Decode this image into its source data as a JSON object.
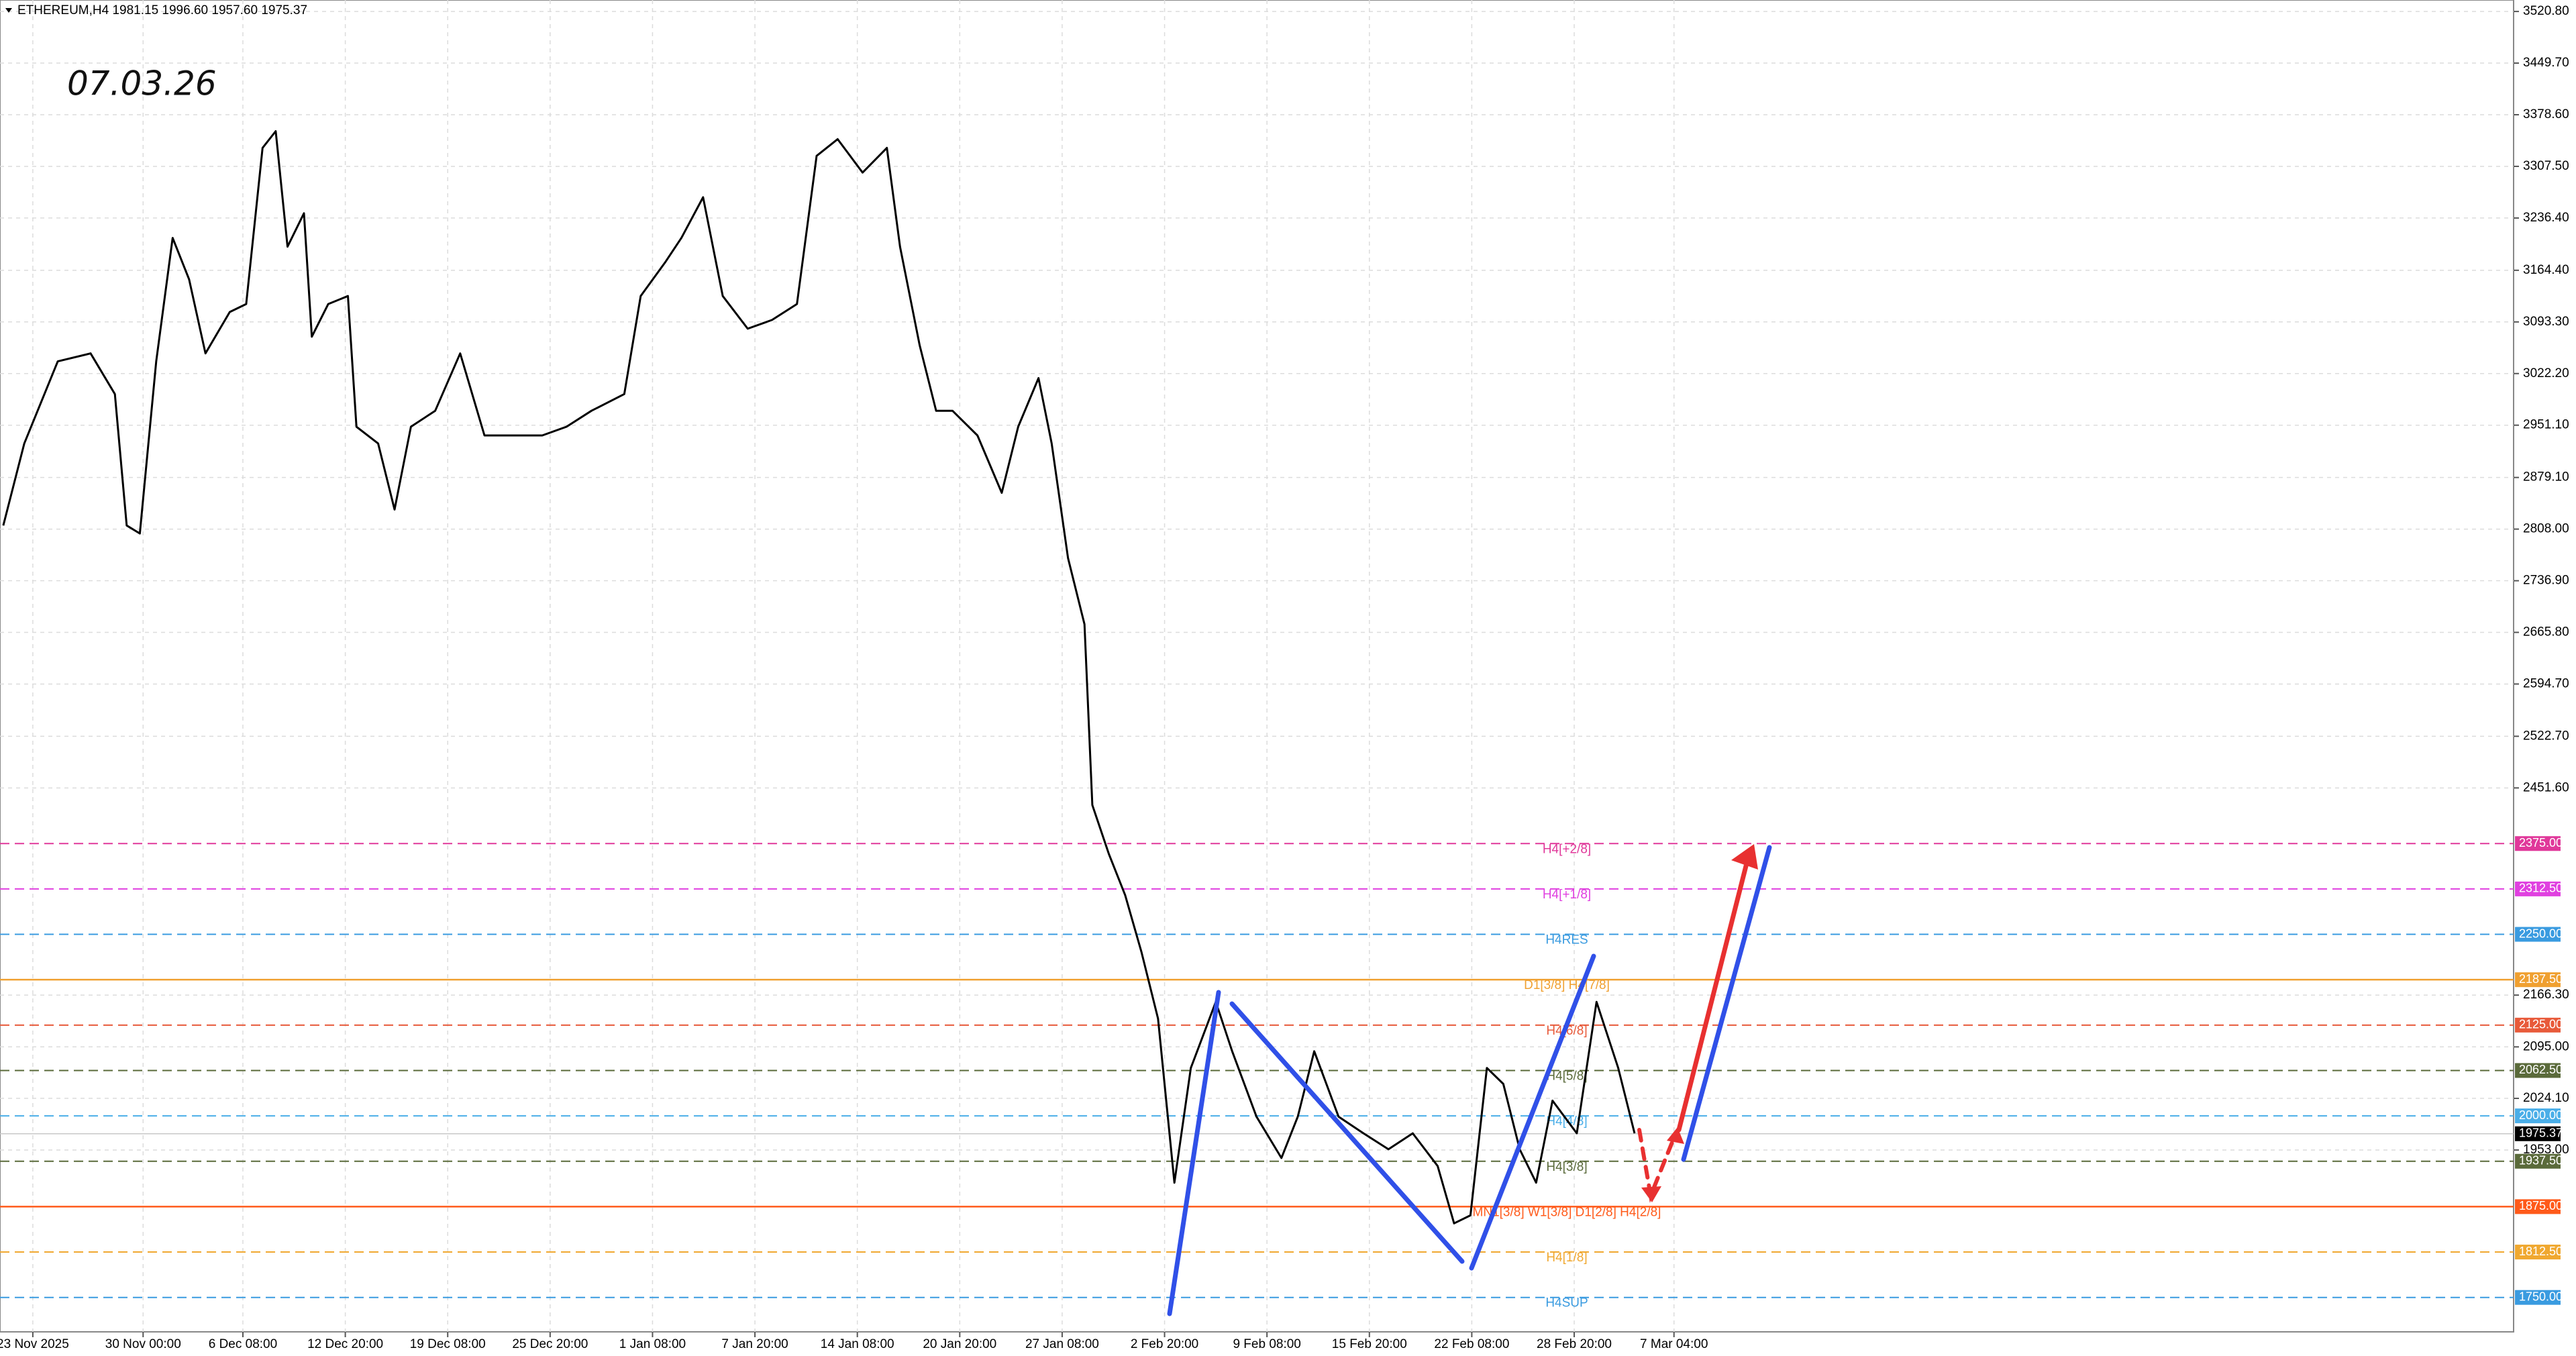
{
  "chart_data": {
    "type": "line",
    "title": "ETHEREUM,H4  1981.15 1996.60 1957.60 1975.37",
    "annotation": "07.03.26",
    "color": "#000000",
    "grid": true,
    "x": [
      -45,
      -13,
      38,
      88,
      125,
      143,
      163,
      188,
      213,
      238,
      263,
      300,
      325,
      350,
      370,
      388,
      413,
      425,
      450,
      480,
      493,
      526,
      551,
      576,
      613,
      651,
      688,
      726,
      776,
      813,
      851,
      901,
      926,
      963,
      988,
      1021,
      1051,
      1089,
      1126,
      1164,
      1194,
      1226,
      1264,
      1301,
      1321,
      1351,
      1376,
      1401,
      1439,
      1476,
      1501,
      1532,
      1552,
      1577,
      1602,
      1614,
      1639,
      1664,
      1689,
      1714,
      1739,
      1764,
      1802,
      1827,
      1864,
      1902,
      1927,
      1952,
      1989,
      2027,
      2065,
      2102,
      2140,
      2165,
      2190,
      2215,
      2240,
      2265,
      2290,
      2315,
      2352,
      2382,
      2415,
      2440
    ],
    "values": [
      2813,
      2926,
      3039,
      3050,
      2994,
      2813,
      2802,
      3039,
      3209,
      3152,
      3050,
      3107,
      3118,
      3333,
      3356,
      3197,
      3243,
      3073,
      3118,
      3129,
      2949,
      2926,
      2835,
      2949,
      2971,
      3050,
      2937,
      2937,
      2937,
      2949,
      2971,
      2994,
      3129,
      3175,
      3209,
      3265,
      3129,
      3084,
      3096,
      3118,
      3322,
      3345,
      3299,
      3333,
      3197,
      3061,
      2971,
      2971,
      2937,
      2858,
      2949,
      3016,
      2926,
      2768,
      2677,
      2428,
      2361,
      2304,
      2225,
      2134,
      1908,
      2066,
      2157,
      2089,
      1999,
      1942,
      1999,
      2089,
      1999,
      1976,
      1954,
      1976,
      1931,
      1852,
      1863,
      2066,
      2044,
      1954,
      1908,
      2021,
      1976,
      2157,
      2066,
      1976
    ],
    "xlim": [
      -50,
      3779
    ],
    "ylim": [
      1702.6,
      3536.6
    ],
    "xticks": [
      {
        "value": 0,
        "label": "23 Nov 2025"
      },
      {
        "value": 168,
        "label": "30 Nov 00:00"
      },
      {
        "value": 320,
        "label": "6 Dec 08:00"
      },
      {
        "value": 476,
        "label": "12 Dec 20:00"
      },
      {
        "value": 632,
        "label": "19 Dec 08:00"
      },
      {
        "value": 788,
        "label": "25 Dec 20:00"
      },
      {
        "value": 944,
        "label": "1 Jan 08:00"
      },
      {
        "value": 1100,
        "label": "7 Jan 20:00"
      },
      {
        "value": 1256,
        "label": "14 Jan 08:00"
      },
      {
        "value": 1412,
        "label": "20 Jan 20:00"
      },
      {
        "value": 1568,
        "label": "27 Jan 08:00"
      },
      {
        "value": 1724,
        "label": "2 Feb 20:00"
      },
      {
        "value": 1880,
        "label": "9 Feb 08:00"
      },
      {
        "value": 2036,
        "label": "15 Feb 20:00"
      },
      {
        "value": 2192,
        "label": "22 Feb 08:00"
      },
      {
        "value": 2348,
        "label": "28 Feb 20:00"
      },
      {
        "value": 2500,
        "label": "7 Mar 04:00"
      }
    ],
    "yticks": [
      {
        "value": 3520.8,
        "label": "3520.80"
      },
      {
        "value": 3449.7,
        "label": "3449.70"
      },
      {
        "value": 3378.6,
        "label": "3378.60"
      },
      {
        "value": 3307.5,
        "label": "3307.50"
      },
      {
        "value": 3236.4,
        "label": "3236.40"
      },
      {
        "value": 3164.4,
        "label": "3164.40"
      },
      {
        "value": 3093.3,
        "label": "3093.30"
      },
      {
        "value": 3022.2,
        "label": "3022.20"
      },
      {
        "value": 2951.1,
        "label": "2951.10"
      },
      {
        "value": 2879.1,
        "label": "2879.10"
      },
      {
        "value": 2808.0,
        "label": "2808.00"
      },
      {
        "value": 2736.9,
        "label": "2736.90"
      },
      {
        "value": 2665.8,
        "label": "2665.80"
      },
      {
        "value": 2594.7,
        "label": "2594.70"
      },
      {
        "value": 2522.7,
        "label": "2522.70"
      },
      {
        "value": 2451.6,
        "label": "2451.60"
      },
      {
        "value": 2166.3,
        "label": "2166.30"
      },
      {
        "value": 2095.0,
        "label": "2095.00"
      },
      {
        "value": 2024.1,
        "label": "2024.10"
      },
      {
        "value": 1953.0,
        "label": "1953.00"
      }
    ],
    "levels": [
      {
        "value": 2375,
        "label": "H4[+2/8]",
        "axis_label": "2375.00",
        "color": "#e0389a",
        "dashed": true
      },
      {
        "value": 2312.5,
        "label": "H4[+1/8]",
        "axis_label": "2312.50",
        "color": "#e040e0",
        "dashed": true
      },
      {
        "value": 2250,
        "label": "H4RES",
        "axis_label": "2250.00",
        "color": "#3a9be0",
        "dashed": true
      },
      {
        "value": 2187.5,
        "label": "D1[3/8] H4[7/8]",
        "axis_label": "2187.50",
        "color": "#f0a030",
        "dashed": false
      },
      {
        "value": 2125,
        "label": "H4[6/8]",
        "axis_label": "2125.00",
        "color": "#e85a3a",
        "dashed": true
      },
      {
        "value": 2062.5,
        "label": "H4[5/8]",
        "axis_label": "2062.50",
        "color": "#5a6a3a",
        "dashed": true
      },
      {
        "value": 2000,
        "label": "H4[4/8]",
        "axis_label": "2000.00",
        "color": "#4aaee8",
        "dashed": true
      },
      {
        "value": 1937.5,
        "label": "H4[3/8]",
        "axis_label": "1937.50",
        "color": "#5a6a3a",
        "dashed": true
      },
      {
        "value": 1875,
        "label": "MN1[3/8] W1[3/8] D1[2/8] H4[2/8]",
        "axis_label": "1875.00",
        "color": "#ff5a1a",
        "dashed": false
      },
      {
        "value": 1812.5,
        "label": "H4[1/8]",
        "axis_label": "1812.50",
        "color": "#f0a830",
        "dashed": true
      },
      {
        "value": 1750,
        "label": "H4SUP",
        "axis_label": "1750.00",
        "color": "#3a9be0",
        "dashed": true
      }
    ],
    "last_price": {
      "value": 1975.37,
      "label": "1975.37"
    }
  }
}
